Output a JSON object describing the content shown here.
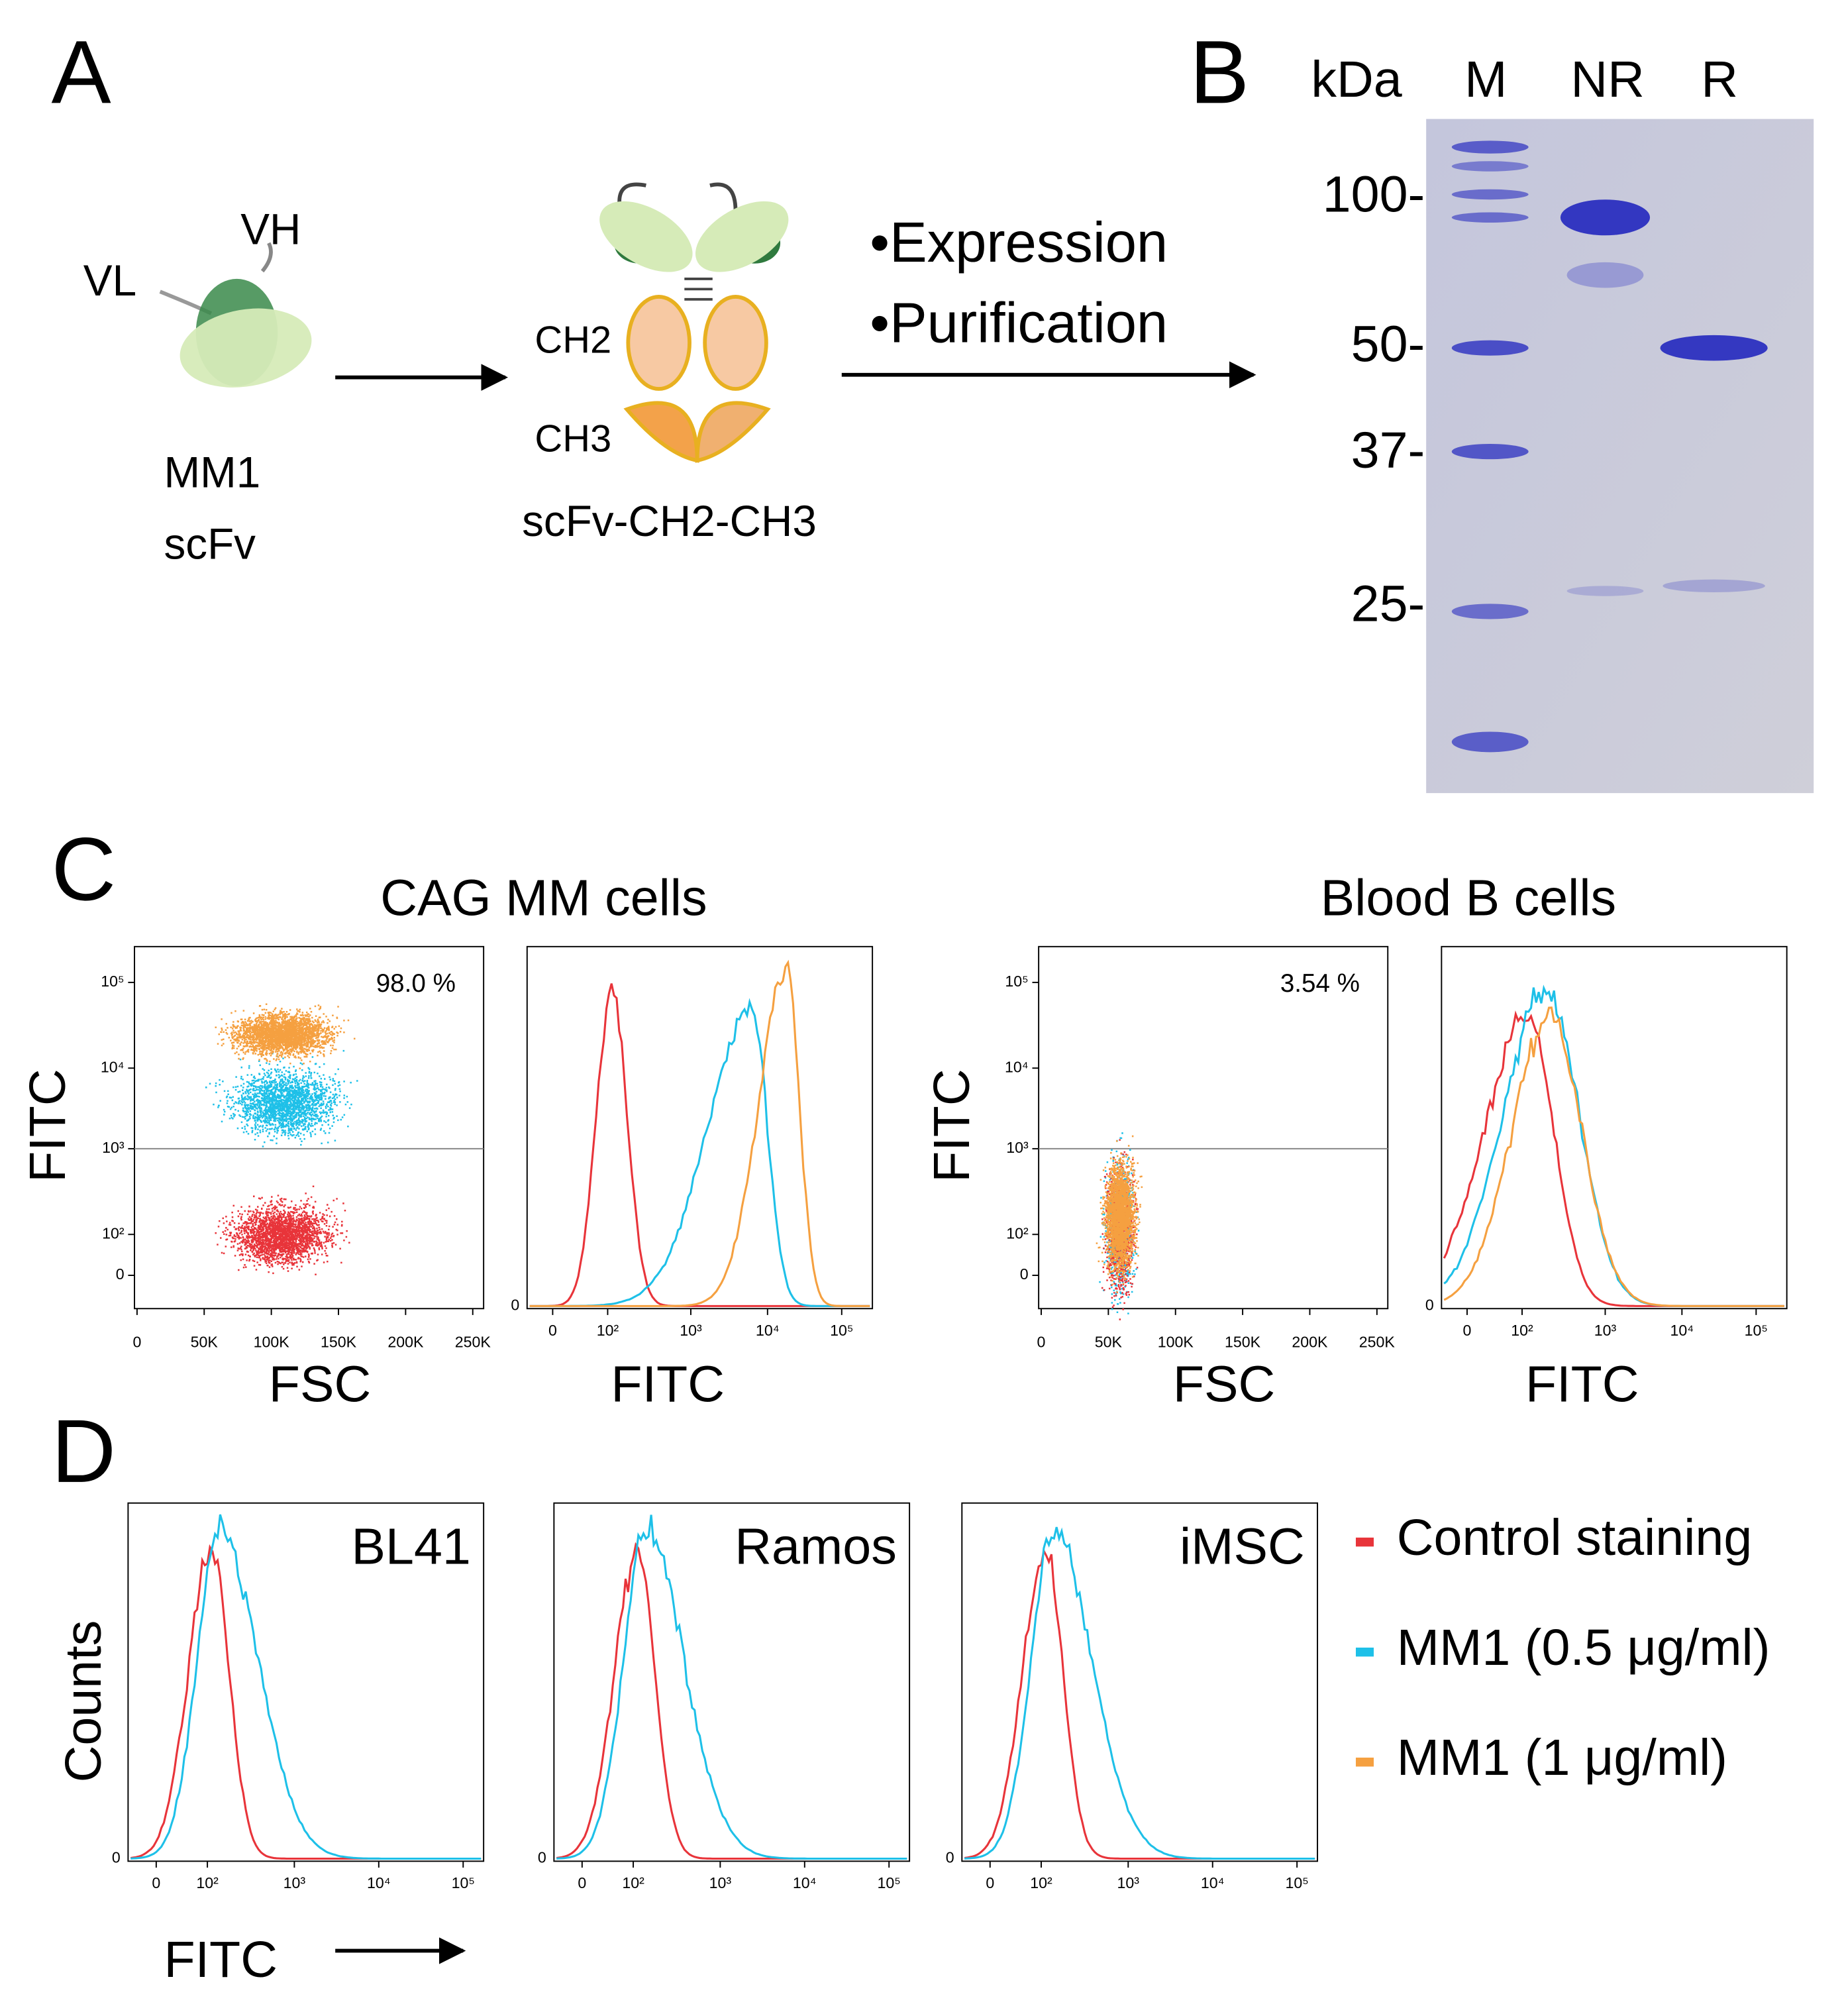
{
  "panel_a": {
    "letter": "A",
    "vl": "VL",
    "vh": "VH",
    "scfv_lines": [
      "MM1",
      "scFv"
    ],
    "ch2": "CH2",
    "ch3": "CH3",
    "construct": "scFv-CH2-CH3",
    "steps": [
      "•Expression",
      "•Purification"
    ]
  },
  "panel_b": {
    "letter": "B",
    "unit": "kDa",
    "lanes": [
      "M",
      "NR",
      "R"
    ],
    "markers": [
      "100-",
      "50-",
      "37-",
      "25-"
    ]
  },
  "panel_c": {
    "letter": "C",
    "groups": [
      {
        "title": "CAG MM cells",
        "dot_y_label": "FITC",
        "dot_x_label": "FSC",
        "gate_label": "98.0 %",
        "hist_x_label": "FITC"
      },
      {
        "title": "Blood B cells",
        "dot_y_label": "FITC",
        "dot_x_label": "FSC",
        "gate_label": "3.54 %",
        "hist_x_label": "FITC"
      }
    ],
    "dot_x_ticks": [
      "0",
      "50K",
      "100K",
      "150K",
      "200K",
      "250K"
    ],
    "dot_y_ticks": [
      "10⁵",
      "10⁴",
      "10³",
      "10²",
      "0"
    ],
    "hist_x_ticks": [
      "0",
      "10²",
      "10³",
      "10⁴",
      "10⁵"
    ],
    "hist_y_tick": "0"
  },
  "panel_d": {
    "letter": "D",
    "y_label": "Counts",
    "x_label": "FITC",
    "panels": [
      "BL41",
      "Ramos",
      "iMSC"
    ],
    "x_ticks": [
      "0",
      "10²",
      "10³",
      "10⁴",
      "10⁵"
    ],
    "y_tick": "0",
    "legend": [
      {
        "label": "Control staining",
        "color": "#e8343a"
      },
      {
        "label": "MM1 (0.5 μg/ml)",
        "color": "#1ec0e8"
      },
      {
        "label": "MM1 (1 μg/ml)",
        "color": "#f5a040"
      }
    ]
  }
}
